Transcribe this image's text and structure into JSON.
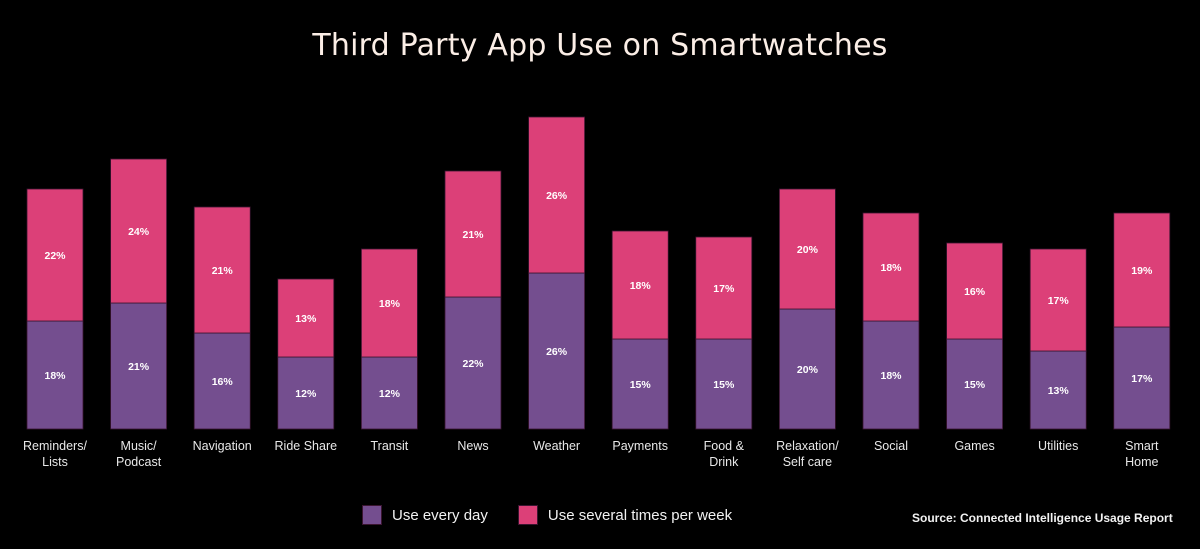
{
  "chart_data": {
    "type": "bar",
    "stacked": true,
    "title": "Third Party App Use on Smartwatches",
    "xlabel": "",
    "ylabel": "",
    "ylim": [
      0,
      52
    ],
    "grid": false,
    "legend_position": "bottom-center",
    "categories": [
      [
        "Reminders/",
        "Lists"
      ],
      [
        "Music/",
        "Podcast"
      ],
      [
        "Navigation"
      ],
      [
        "Ride Share"
      ],
      [
        "Transit"
      ],
      [
        "News"
      ],
      [
        "Weather"
      ],
      [
        "Payments"
      ],
      [
        "Food &",
        "Drink"
      ],
      [
        "Relaxation/",
        "Self care"
      ],
      [
        "Social"
      ],
      [
        "Games"
      ],
      [
        "Utilities"
      ],
      [
        "Smart",
        "Home"
      ]
    ],
    "series": [
      {
        "name": "Use every day",
        "color": "#744e8f",
        "values": [
          18,
          21,
          16,
          12,
          12,
          22,
          26,
          15,
          15,
          20,
          18,
          15,
          13,
          17
        ]
      },
      {
        "name": "Use several times per week",
        "color": "#dc4078",
        "values": [
          22,
          24,
          21,
          13,
          18,
          21,
          26,
          18,
          17,
          20,
          18,
          16,
          17,
          19
        ]
      }
    ],
    "value_suffix": "%",
    "source": "Source: Connected Intelligence Usage Report"
  }
}
